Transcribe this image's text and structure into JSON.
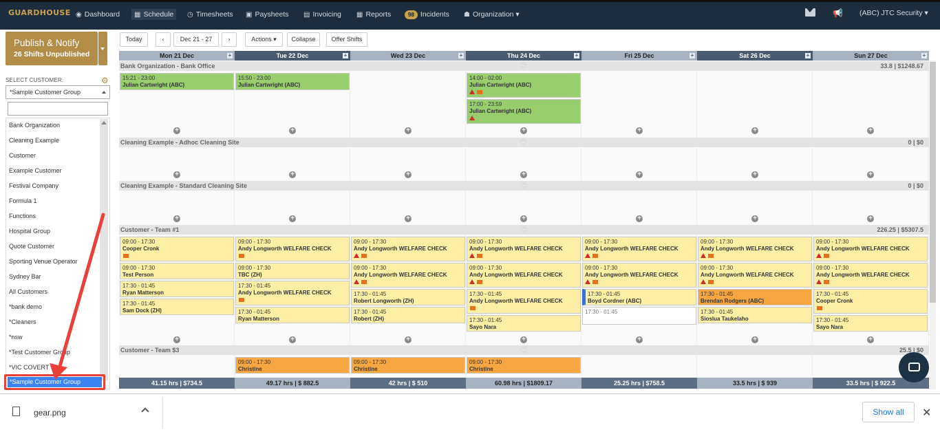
{
  "logo": "GUARDHOUSE",
  "nav": {
    "dashboard": "Dashboard",
    "schedule": "Schedule",
    "timesheets": "Timesheets",
    "paysheets": "Paysheets",
    "invoicing": "Invoicing",
    "reports": "Reports",
    "incidents_count": "98",
    "incidents": "Incidents",
    "organization": "Organization",
    "user": "(ABC) JTC Security"
  },
  "publish": {
    "title": "Publish & Notify",
    "subtitle": "26 Shifts Unpublished"
  },
  "toolbar": {
    "today": "Today",
    "date_range": "Dec 21 - 27",
    "actions": "Actions",
    "collapse": "Collapse",
    "offer_shifts": "Offer Shifts"
  },
  "customer_select": {
    "label": "SELECT CUSTOMER:",
    "value": "*Sample Customer Group",
    "options": [
      "Bank Organization",
      "Cleaning Example",
      "Customer",
      "Example Customer",
      "Festival Company",
      "Formula 1",
      "Functions",
      "Hospital Group",
      "Quote Customer",
      "Sporting Venue Operator",
      "Sydney Bar",
      "All Customers",
      "*bank demo",
      "*Cleaners",
      "*nsw",
      "*Test Customer Group",
      "*VIC COVERT"
    ],
    "highlighted": "*Sample Customer Group"
  },
  "days": [
    "Mon 21 Dec",
    "Tue 22 Dec",
    "Wed 23 Dec",
    "Thu 24 Dec",
    "Fri 25 Dec",
    "Sat 26 Dec",
    "Sun 27 Dec"
  ],
  "groups": [
    {
      "name": "Bank Organization - Bank Office",
      "total": "33.8 | $1248.67"
    },
    {
      "name": "Cleaning Example - Adhoc Cleaning Site",
      "total": "0 | $0"
    },
    {
      "name": "Cleaning Example - Standard Cleaning Site",
      "total": "0 | $0"
    },
    {
      "name": "Customer - Team #1",
      "total": "226.25 | $5307.5"
    },
    {
      "name": "Customer - Team $3",
      "total": "25.5 | $0"
    }
  ],
  "shifts": {
    "bank": [
      {
        "time": "15:21 - 23:00",
        "name": "Julian Cartwright (ABC)"
      },
      {
        "time": "15:50 - 23:00",
        "name": "Julian Cartwright (ABC)"
      },
      {
        "time": "14:00 - 02:00",
        "name": "Julian Cartwright (ABC)"
      },
      {
        "time": "17:00 - 23:59",
        "name": "Julian Cartwright (ABC)"
      }
    ],
    "team1": {
      "mon": [
        {
          "time": "09:00 - 17:30",
          "name": "Cooper Cronk"
        },
        {
          "time": "09:00 - 17:30",
          "name": "Test Person"
        },
        {
          "time": "17:30 - 01:45",
          "name": "Ryan Matterson"
        },
        {
          "time": "17:30 - 01:45",
          "name": "Sam Dock (ZH)"
        }
      ],
      "tue": [
        {
          "time": "09:00 - 17:30",
          "name": "Andy Longworth WELFARE CHECK"
        },
        {
          "time": "09:00 - 17:30",
          "name": "TBC (ZH)"
        },
        {
          "time": "17:30 - 01:45",
          "name": "Andy Longworth WELFARE CHECK"
        },
        {
          "time": "17:30 - 01:45",
          "name": "Ryan Matterson"
        }
      ],
      "wed": [
        {
          "time": "09:00 - 17:30",
          "name": "Andy Longworth WELFARE CHECK"
        },
        {
          "time": "09:00 - 17:30",
          "name": "Andy Longworth WELFARE CHECK"
        },
        {
          "time": "17:30 - 01:45",
          "name": "Robert Longworth (ZH)"
        },
        {
          "time": "17:30 - 01:45",
          "name": "Robert (ZH)"
        }
      ],
      "thu": [
        {
          "time": "09:00 - 17:30",
          "name": "Andy Longworth WELFARE CHECK"
        },
        {
          "time": "09:00 - 17:30",
          "name": "Andy Longworth WELFARE CHECK"
        },
        {
          "time": "17:30 - 01:45",
          "name": "Andy Longworth WELFARE CHECK"
        },
        {
          "time": "17:30 - 01:45",
          "name": "Sayo Nara"
        }
      ],
      "fri": [
        {
          "time": "09:00 - 17:30",
          "name": "Andy Longworth WELFARE CHECK"
        },
        {
          "time": "09:00 - 17:30",
          "name": "Andy Longworth WELFARE CHECK"
        },
        {
          "time": "17:30 - 01:45",
          "name": "Boyd Cordner (ABC)"
        },
        {
          "time": "17:30 - 01:45",
          "name": ""
        }
      ],
      "sat": [
        {
          "time": "09:00 - 17:30",
          "name": "Andy Longworth WELFARE CHECK"
        },
        {
          "time": "09:00 - 17:30",
          "name": "Andy Longworth WELFARE CHECK"
        },
        {
          "time": "17:30 - 01:45",
          "name": "Brendan Rodgers (ABC)"
        },
        {
          "time": "17:30 - 01:45",
          "name": "Sioslua Taukelaho"
        }
      ],
      "sun": [
        {
          "time": "09:00 - 17:30",
          "name": "Andy Longworth WELFARE CHECK"
        },
        {
          "time": "09:00 - 17:30",
          "name": "Andy Longworth WELFARE CHECK"
        },
        {
          "time": "17:30 - 01:45",
          "name": "Cooper Cronk"
        },
        {
          "time": "17:30 - 01:45",
          "name": "Sayo Nara"
        }
      ]
    },
    "team3": [
      {
        "time": "09:00 - 17:30",
        "name": "Christine"
      },
      {
        "time": "09:00 - 17:30",
        "name": "Christine"
      },
      {
        "time": "09:00 - 17:30",
        "name": "Christine"
      }
    ]
  },
  "footer": [
    "41.15 hrs  | $734.5",
    "49.17 hrs  | $ 882.5",
    "42 hrs  | $ 510",
    "60.98 hrs  | $1809.17",
    "25.25 hrs  | $758.5",
    "33.5 hrs  | $ 939",
    "33.5 hrs  | $ 922.5"
  ],
  "download": {
    "filename": "gear.png",
    "show_all": "Show all"
  },
  "colors": {
    "nav": "#1e2d3d",
    "gold": "#b38d47",
    "header_light": "#a8b3c2",
    "header_dark": "#4a5a6e",
    "green": "#97cd6c",
    "yellow": "#fdf0a6",
    "orange": "#f7a742",
    "annotation_red": "#e8413a"
  }
}
